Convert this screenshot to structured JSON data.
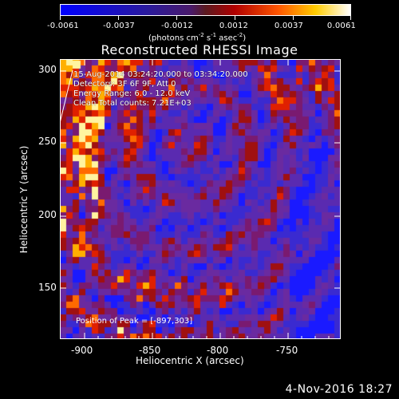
{
  "colorbar": {
    "min_color": "#0000ff",
    "mid_color": "#3a1a55",
    "max_color": "#ffffff",
    "tick_labels": [
      "-0.0061",
      "-0.0037",
      "-0.0012",
      "0.0012",
      "0.0037",
      "0.0061"
    ],
    "units_prefix": "(photons cm",
    "units_exp1": "-2",
    "units_mid": " s",
    "units_exp2": "-1",
    "units_mid2": " asec",
    "units_exp3": "-2",
    "units_suffix": ")"
  },
  "title": "Reconstructed RHESSI Image",
  "info": {
    "time_range": "15-Aug-2014 03:24:20.000 to 03:34:20.000",
    "detectors": "Detectors: 3F 6F 9F, Att 0",
    "energy": "Energy Range: 6.0 - 12.0 keV",
    "clean": "Clean    Total counts: 7.21E+03",
    "peak": "Position of Peak = [-897,303]"
  },
  "axes": {
    "x_title": "Heliocentric X (arcsec)",
    "y_title": "Heliocentric Y (arcsec)",
    "x_ticks": [
      "-900",
      "-850",
      "-800",
      "-750"
    ],
    "y_ticks": [
      "150",
      "200",
      "250",
      "300"
    ]
  },
  "timestamp": "4-Nov-2016 18:27",
  "chart_data": {
    "type": "heatmap",
    "title": "Reconstructed RHESSI Image",
    "xlabel": "Heliocentric X (arcsec)",
    "ylabel": "Heliocentric Y (arcsec)",
    "xlim": [
      -910,
      -718
    ],
    "ylim": [
      113,
      308
    ],
    "color_range": [
      -0.0061,
      0.0061
    ],
    "peak": [
      -897,
      303
    ]
  }
}
